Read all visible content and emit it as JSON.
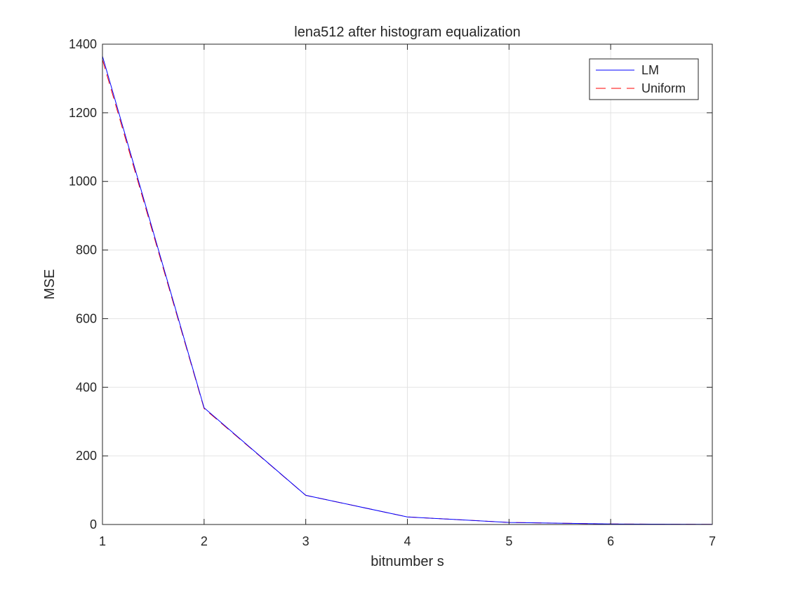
{
  "chart_data": {
    "type": "line",
    "title": "lena512 after histogram equalization",
    "xlabel": "bitnumber s",
    "ylabel": "MSE",
    "xlim": [
      1,
      7
    ],
    "ylim": [
      0,
      1400
    ],
    "xticks": [
      1,
      2,
      3,
      4,
      5,
      6,
      7
    ],
    "yticks": [
      0,
      200,
      400,
      600,
      800,
      1000,
      1200,
      1400
    ],
    "grid": true,
    "legend_position": "top-right",
    "x": [
      1,
      2,
      3,
      4,
      5,
      6,
      7
    ],
    "series": [
      {
        "name": "LM",
        "values": [
          1365,
          340,
          85,
          22,
          6,
          1.5,
          0.4
        ],
        "color": "#0000ff",
        "style": "solid"
      },
      {
        "name": "Uniform",
        "values": [
          1355,
          338,
          85,
          22,
          6,
          1.5,
          0.4
        ],
        "color": "#ff0000",
        "style": "dashed"
      }
    ]
  }
}
